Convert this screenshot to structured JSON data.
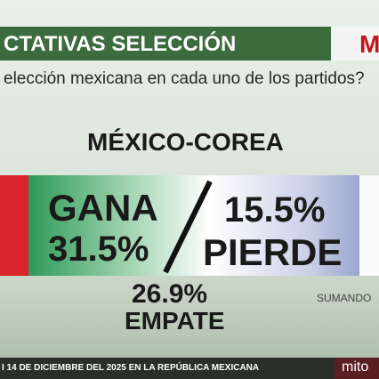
{
  "header": {
    "title": "CTATIVAS SELECCIÓN",
    "logo": "M",
    "question": "elección mexicana en cada uno de los partidos?"
  },
  "match": "MÉXICO-COREA",
  "results": {
    "win_label": "GANA",
    "win_value": "31.5%",
    "lose_value": "15.5%",
    "lose_label": "PIERDE",
    "draw_value": "26.9%",
    "draw_label": "EMPATE"
  },
  "note": "SUMANDO",
  "footer": {
    "text": "I 14 DE DICIEMBRE DEL 2025 EN LA REPÚBLICA MEXICANA",
    "brand": "mito"
  }
}
